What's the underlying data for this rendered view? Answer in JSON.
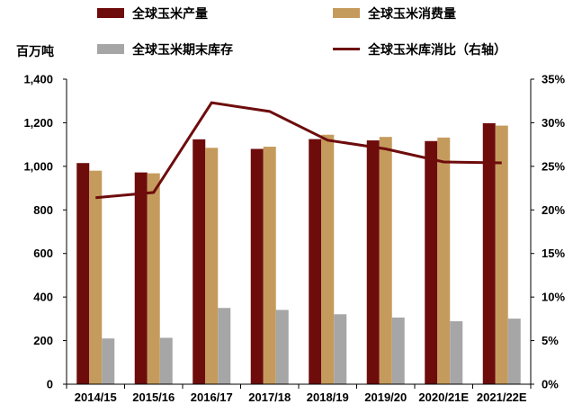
{
  "chart_data": {
    "type": "bar",
    "categories": [
      "2014/15",
      "2015/16",
      "2016/17",
      "2017/18",
      "2018/19",
      "2019/20",
      "2020/21E",
      "2021/22E"
    ],
    "series": [
      {
        "name": "全球玉米产量",
        "type": "bar",
        "axis": "left",
        "color": "#6e0c0c",
        "values": [
          1015,
          972,
          1124,
          1080,
          1125,
          1119,
          1116,
          1198
        ]
      },
      {
        "name": "全球玉米消费量",
        "type": "bar",
        "axis": "left",
        "color": "#c59b5d",
        "values": [
          980,
          968,
          1085,
          1090,
          1145,
          1135,
          1132,
          1187
        ]
      },
      {
        "name": "全球玉米期末库存",
        "type": "bar",
        "axis": "left",
        "color": "#a6a6a6",
        "values": [
          210,
          213,
          350,
          341,
          321,
          306,
          289,
          301
        ]
      },
      {
        "name": "全球玉米库消比（右轴）",
        "type": "line",
        "axis": "right",
        "color": "#6e0c0c",
        "values": [
          21.4,
          22.0,
          32.3,
          31.3,
          28.0,
          27.0,
          25.5,
          25.4
        ]
      }
    ],
    "ylabel": "百万吨",
    "ylim": [
      0,
      1400
    ],
    "y2lim": [
      0,
      35
    ],
    "y_ticks": [
      {
        "value": 0,
        "label": "0"
      },
      {
        "value": 200,
        "label": "200"
      },
      {
        "value": 400,
        "label": "400"
      },
      {
        "value": 600,
        "label": "600"
      },
      {
        "value": 800,
        "label": "800"
      },
      {
        "value": 1000,
        "label": "1,000"
      },
      {
        "value": 1200,
        "label": "1,200"
      },
      {
        "value": 1400,
        "label": "1,400"
      }
    ],
    "y2_ticks": [
      {
        "value": 0,
        "label": "0%"
      },
      {
        "value": 5,
        "label": "5%"
      },
      {
        "value": 10,
        "label": "10%"
      },
      {
        "value": 15,
        "label": "15%"
      },
      {
        "value": 20,
        "label": "20%"
      },
      {
        "value": 25,
        "label": "25%"
      },
      {
        "value": 30,
        "label": "30%"
      },
      {
        "value": 35,
        "label": "35%"
      }
    ],
    "legend": "top",
    "grid": false
  }
}
